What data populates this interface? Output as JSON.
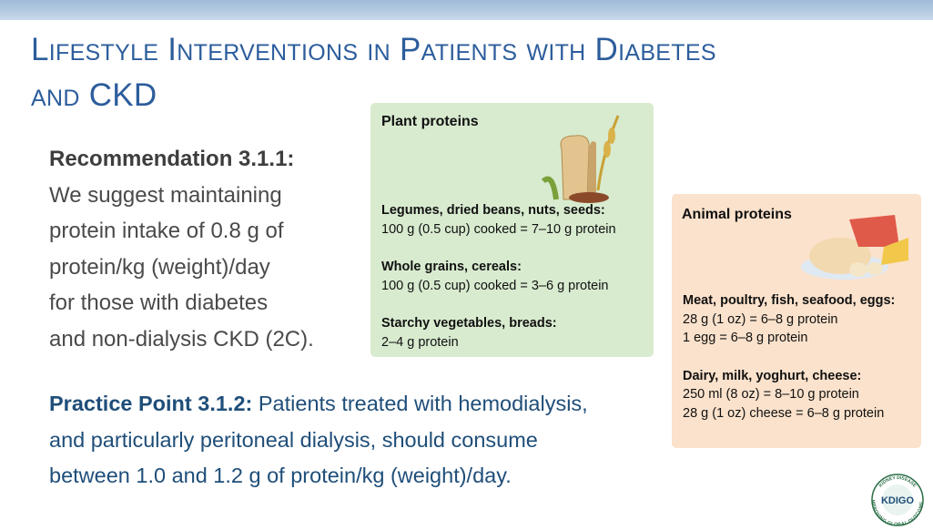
{
  "header": {
    "title_lines": [
      "Lifestyle Interventions in Patients with Diabetes",
      "and CKD"
    ]
  },
  "recommendation": {
    "label": "Recommendation 3.1.1:",
    "lines": [
      "We suggest maintaining",
      "protein intake of 0.8 g of",
      "protein/kg (weight)/day",
      "for those with diabetes",
      "and non-dialysis CKD (2C)."
    ]
  },
  "practice_point": {
    "label": "Practice Point 3.1.2:",
    "lines": [
      "Patients treated with hemodialysis,",
      "and particularly peritoneal dialysis, should consume",
      "between 1.0 and 1.2 g of protein/kg (weight)/day."
    ]
  },
  "plant_box": {
    "title": "Plant proteins",
    "items": [
      {
        "heading": "Legumes, dried beans, nuts, seeds:",
        "lines": [
          "100 g (0.5 cup) cooked = 7–10 g protein"
        ]
      },
      {
        "heading": "Whole grains, cereals:",
        "lines": [
          "100 g (0.5 cup) cooked = 3–6 g protein"
        ]
      },
      {
        "heading": "Starchy vegetables, breads:",
        "lines": [
          "2–4 g protein"
        ]
      }
    ]
  },
  "animal_box": {
    "title": "Animal proteins",
    "items": [
      {
        "heading": "Meat, poultry, fish, seafood, eggs:",
        "lines": [
          "28 g (1 oz) = 6–8 g protein",
          "1 egg = 6–8 g protein"
        ]
      },
      {
        "heading": "Dairy, milk, yoghurt, cheese:",
        "lines": [
          "250 ml (8 oz) = 8–10 g protein",
          "28 g (1 oz) cheese = 6–8 g protein"
        ]
      }
    ]
  },
  "logo": {
    "name": "KDIGO",
    "ring_top": "KIDNEY DISEASE",
    "ring_bottom": "IMPROVING GLOBAL OUTCOMES"
  }
}
